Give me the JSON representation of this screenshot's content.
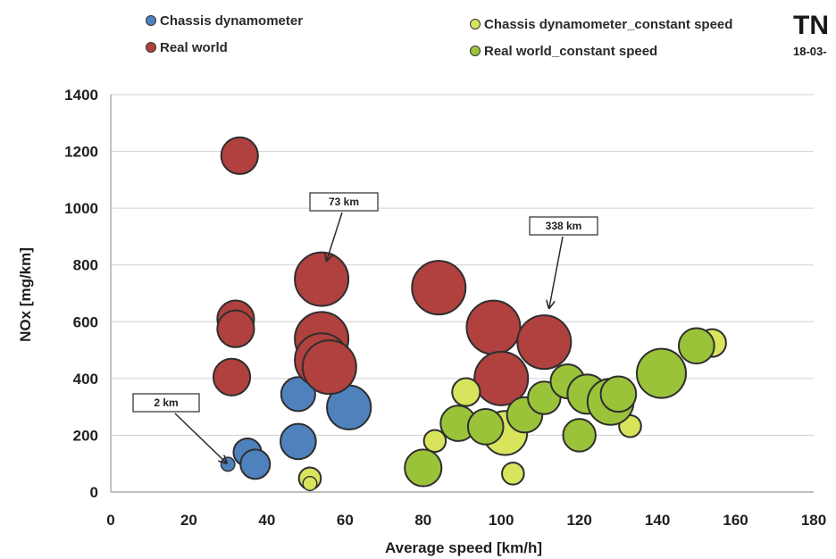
{
  "header": {
    "logo": "TN",
    "date": "18-03-"
  },
  "colors": {
    "chassis_dynamometer": "#4f81bd",
    "real_world": "#b0413e",
    "chassis_dynamometer_constant_speed": "#d7e45c",
    "real_world_constant_speed": "#9bc33a",
    "grid": "#d0d0d0"
  },
  "chart_data": {
    "type": "scatter",
    "bubble": true,
    "title": "",
    "xlabel": "Average speed [km/h]",
    "ylabel": "NOx [mg/km]",
    "xlim": [
      0,
      180
    ],
    "ylim": [
      0,
      1400
    ],
    "xticks": [
      "0",
      "20",
      "40",
      "60",
      "80",
      "100",
      "120",
      "140",
      "160",
      "180"
    ],
    "yticks": [
      "0",
      "200",
      "400",
      "600",
      "800",
      "1000",
      "1200",
      "1400"
    ],
    "grid": "horizontal",
    "legend": {
      "placement": "top",
      "entries": [
        "Chassis dynamometer",
        "Real world",
        "Chassis dynamometer_constant speed",
        "Real world_constant speed"
      ]
    },
    "series": [
      {
        "name": "Chassis dynamometer",
        "points": [
          {
            "x": 30,
            "y": 98,
            "size": 2
          },
          {
            "x": 35,
            "y": 140,
            "size": 8
          },
          {
            "x": 37,
            "y": 98,
            "size": 9
          },
          {
            "x": 48,
            "y": 345,
            "size": 12
          },
          {
            "x": 48,
            "y": 178,
            "size": 13
          },
          {
            "x": 61,
            "y": 298,
            "size": 20
          }
        ]
      },
      {
        "name": "Real world",
        "points": [
          {
            "x": 33,
            "y": 1185,
            "size": 14
          },
          {
            "x": 31,
            "y": 405,
            "size": 14
          },
          {
            "x": 32,
            "y": 610,
            "size": 14
          },
          {
            "x": 32,
            "y": 575,
            "size": 14
          },
          {
            "x": 54,
            "y": 750,
            "size": 73
          },
          {
            "x": 54,
            "y": 540,
            "size": 30
          },
          {
            "x": 54,
            "y": 465,
            "size": 30
          },
          {
            "x": 56,
            "y": 440,
            "size": 30
          },
          {
            "x": 84,
            "y": 720,
            "size": 40
          },
          {
            "x": 98,
            "y": 580,
            "size": 38
          },
          {
            "x": 100,
            "y": 400,
            "size": 100
          },
          {
            "x": 111,
            "y": 528,
            "size": 338
          }
        ]
      },
      {
        "name": "Chassis dynamometer_constant speed",
        "points": [
          {
            "x": 51,
            "y": 48,
            "size": 5
          },
          {
            "x": 51,
            "y": 30,
            "size": 2
          },
          {
            "x": 83,
            "y": 180,
            "size": 5
          },
          {
            "x": 91,
            "y": 352,
            "size": 8
          },
          {
            "x": 103,
            "y": 65,
            "size": 5
          },
          {
            "x": 101,
            "y": 208,
            "size": 20
          },
          {
            "x": 133,
            "y": 232,
            "size": 5
          },
          {
            "x": 154,
            "y": 525,
            "size": 8
          }
        ]
      },
      {
        "name": "Real world_constant speed",
        "points": [
          {
            "x": 80,
            "y": 85,
            "size": 14
          },
          {
            "x": 89,
            "y": 242,
            "size": 13
          },
          {
            "x": 96,
            "y": 230,
            "size": 13
          },
          {
            "x": 106,
            "y": 272,
            "size": 13
          },
          {
            "x": 111,
            "y": 332,
            "size": 11
          },
          {
            "x": 117,
            "y": 390,
            "size": 12
          },
          {
            "x": 120,
            "y": 200,
            "size": 11
          },
          {
            "x": 122,
            "y": 345,
            "size": 16
          },
          {
            "x": 128,
            "y": 318,
            "size": 22
          },
          {
            "x": 130,
            "y": 345,
            "size": 13
          },
          {
            "x": 141,
            "y": 418,
            "size": 25
          },
          {
            "x": 150,
            "y": 515,
            "size": 13
          }
        ]
      }
    ],
    "annotations": [
      {
        "text": "2 km",
        "x": 30,
        "y": 98
      },
      {
        "text": "73 km",
        "x": 54,
        "y": 750
      },
      {
        "text": "338 km",
        "x": 111,
        "y": 528
      }
    ]
  }
}
